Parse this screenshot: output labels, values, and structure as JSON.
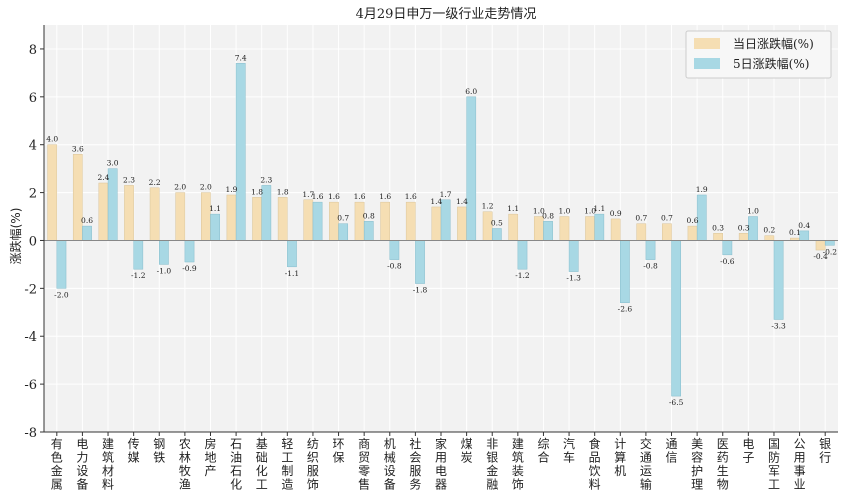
{
  "chart_data": {
    "type": "bar",
    "title": "4月29日申万一级行业走势情况",
    "ylabel": "涨跌幅(%)",
    "xlabel": "",
    "ylim": [
      -8,
      9
    ],
    "yticks": [
      -8,
      -6,
      -4,
      -2,
      0,
      2,
      4,
      6,
      8
    ],
    "grid": true,
    "legend_position": "top-right",
    "categories": [
      "有色金属",
      "电力设备",
      "建筑材料",
      "传媒",
      "钢铁",
      "农林牧渔",
      "房地产",
      "石油石化",
      "基础化工",
      "轻工制造",
      "纺织服饰",
      "环保",
      "商贸零售",
      "机械设备",
      "社会服务",
      "家用电器",
      "煤炭",
      "非银金融",
      "建筑装饰",
      "综合",
      "汽车",
      "食品饮料",
      "计算机",
      "交通运输",
      "通信",
      "美容护理",
      "医药生物",
      "电子",
      "国防军工",
      "公用事业",
      "银行"
    ],
    "series": [
      {
        "name": "当日涨跌幅(%)",
        "color": "#f5deb3",
        "values": [
          4.0,
          3.6,
          2.4,
          2.3,
          2.2,
          2.0,
          2.0,
          1.9,
          1.8,
          1.8,
          1.7,
          1.6,
          1.6,
          1.6,
          1.6,
          1.4,
          1.4,
          1.2,
          1.1,
          1.0,
          1.0,
          1.0,
          0.9,
          0.7,
          0.7,
          0.6,
          0.3,
          0.3,
          0.2,
          0.1,
          -0.4
        ],
        "labels": [
          "4.0",
          "3.6",
          "2.4",
          "2.3",
          "2.2",
          "2.0",
          "2.0",
          "1.9",
          "1.8",
          "1.8",
          "1.7",
          "1.6",
          "1.6",
          "1.6",
          "1.6",
          "1.4",
          "1.4",
          "1.2",
          "1.1",
          "1.0",
          "1.0",
          "1.0",
          "0.9",
          "0.7",
          "0.7",
          "0.6",
          "0.3",
          "0.3",
          "0.2",
          "0.1",
          "-0.4"
        ]
      },
      {
        "name": "5日涨跌幅(%)",
        "color": "#a8d8e4",
        "values": [
          -2.0,
          0.6,
          3.0,
          -1.2,
          -1.0,
          -0.9,
          1.1,
          7.4,
          2.3,
          -1.1,
          1.6,
          0.7,
          0.8,
          -0.8,
          -1.8,
          1.7,
          6.0,
          0.5,
          -1.2,
          0.8,
          -1.3,
          1.1,
          -2.6,
          -0.8,
          -6.5,
          1.9,
          -0.6,
          1.0,
          -3.3,
          0.4,
          -0.2
        ],
        "labels": [
          "-2.0",
          "0.6",
          "3.0",
          "-1.2",
          "-1.0",
          "-0.9",
          "1.1",
          "7.4",
          "2.3",
          "-1.1",
          "1.6",
          "0.7",
          "0.8",
          "-0.8",
          "-1.8",
          "1.7",
          "6.0",
          "0.5",
          "-1.2",
          "0.8",
          "-1.3",
          "1.1",
          "-2.6",
          "-0.8",
          "-6.5",
          "1.9",
          "-0.6",
          "1.0",
          "-3.3",
          "0.4",
          "-0.2"
        ]
      }
    ],
    "colors": {
      "plot_background": "#f2f2f2",
      "grid": "#ffffff",
      "zero_line": "#888888",
      "axis": "#333333",
      "bar_edge": "#d9c49a",
      "bar2_edge": "#86bccb"
    }
  }
}
